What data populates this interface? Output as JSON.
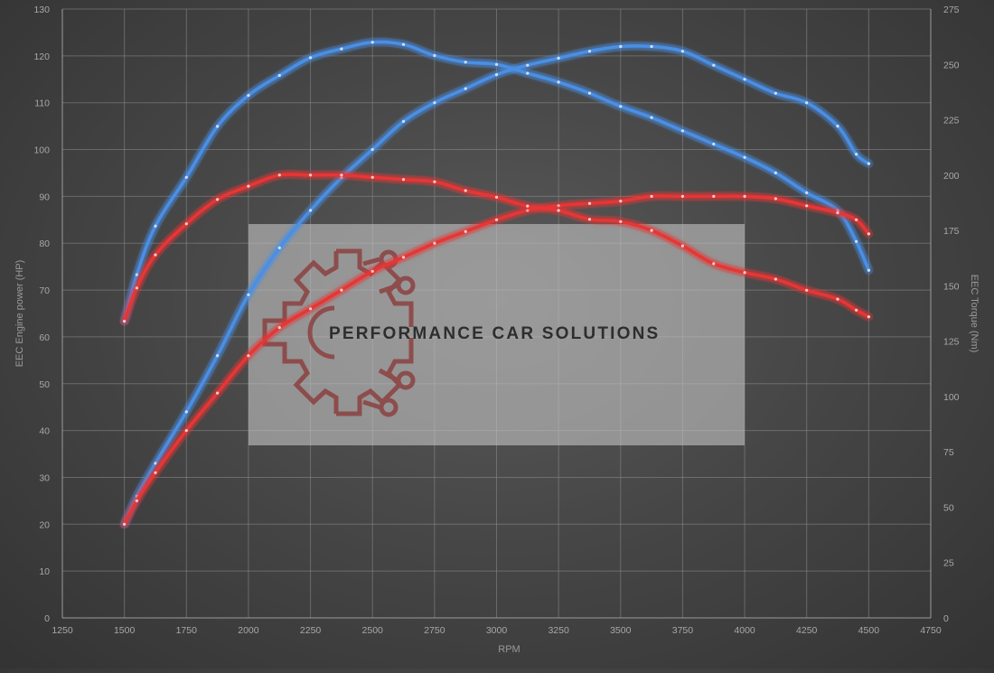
{
  "chart_data": {
    "type": "line",
    "xlabel": "RPM",
    "ylabel_left": "EEC Engine power (HP)",
    "ylabel_right": "EEC Torque (Nm)",
    "xlim": [
      1250,
      4750
    ],
    "ylim_left": [
      0,
      130
    ],
    "ylim_right": [
      0,
      275
    ],
    "x_ticks": [
      1250,
      1500,
      1750,
      2000,
      2250,
      2500,
      2750,
      3000,
      3250,
      3500,
      3750,
      4000,
      4250,
      4500,
      4750
    ],
    "y_left_ticks": [
      0,
      10,
      20,
      30,
      40,
      50,
      60,
      70,
      80,
      90,
      100,
      110,
      120,
      130
    ],
    "y_right_ticks": [
      0,
      25,
      50,
      75,
      100,
      125,
      150,
      175,
      200,
      225,
      250,
      275
    ],
    "grid": true,
    "series": [
      {
        "axis": "left",
        "color": "#4a8fe6",
        "x": [
          1500,
          1550,
          1625,
          1750,
          1875,
          2000,
          2125,
          2250,
          2375,
          2500,
          2625,
          2750,
          2875,
          3000,
          3125,
          3250,
          3375,
          3500,
          3625,
          3750,
          3875,
          4000,
          4125,
          4250,
          4375,
          4450,
          4500
        ],
        "y": [
          20,
          26,
          33,
          44,
          56,
          69,
          79,
          87,
          94,
          100,
          106,
          110,
          113,
          116,
          118,
          119.5,
          121,
          122,
          122,
          121,
          118,
          115,
          112,
          110,
          105,
          99,
          97
        ]
      },
      {
        "axis": "right",
        "color": "#4a8fe6",
        "x": [
          1500,
          1550,
          1625,
          1750,
          1875,
          2000,
          2125,
          2250,
          2375,
          2500,
          2625,
          2750,
          2875,
          3000,
          3125,
          3250,
          3375,
          3500,
          3625,
          3750,
          3875,
          4000,
          4125,
          4250,
          4375,
          4450,
          4500
        ],
        "y": [
          134,
          155,
          177,
          199,
          222,
          236,
          245,
          253,
          257,
          260,
          259,
          254,
          251,
          250,
          246,
          242,
          237,
          231,
          226,
          220,
          214,
          208,
          201,
          192,
          184,
          170,
          157
        ]
      },
      {
        "axis": "left",
        "color": "#e83535",
        "x": [
          1500,
          1550,
          1625,
          1750,
          1875,
          2000,
          2125,
          2250,
          2375,
          2500,
          2625,
          2750,
          2875,
          3000,
          3125,
          3250,
          3375,
          3500,
          3625,
          3750,
          3875,
          4000,
          4125,
          4250,
          4375,
          4450,
          4500
        ],
        "y": [
          20,
          25,
          31,
          40,
          48,
          56,
          62,
          66,
          70,
          74,
          77,
          80,
          82.5,
          85,
          87,
          88,
          88.5,
          89,
          90,
          90,
          90,
          90,
          89.5,
          88,
          86.5,
          85,
          82
        ]
      },
      {
        "axis": "right",
        "color": "#e83535",
        "x": [
          1500,
          1550,
          1625,
          1750,
          1875,
          2000,
          2125,
          2250,
          2375,
          2500,
          2625,
          2750,
          2875,
          3000,
          3125,
          3250,
          3375,
          3500,
          3625,
          3750,
          3875,
          4000,
          4125,
          4250,
          4375,
          4450,
          4500
        ],
        "y": [
          134,
          149,
          164,
          178,
          189,
          195,
          200,
          200,
          200,
          199,
          198,
          197,
          193,
          190,
          186,
          184,
          180,
          179,
          175,
          168,
          160,
          156,
          153,
          148,
          144,
          139,
          136
        ]
      }
    ]
  },
  "watermark": {
    "text": "PERFORMANCE CAR SOLUTIONS",
    "icon": "gear-circuit-icon",
    "icon_color": "#8b3535",
    "box_color": "#bdbdbd"
  }
}
